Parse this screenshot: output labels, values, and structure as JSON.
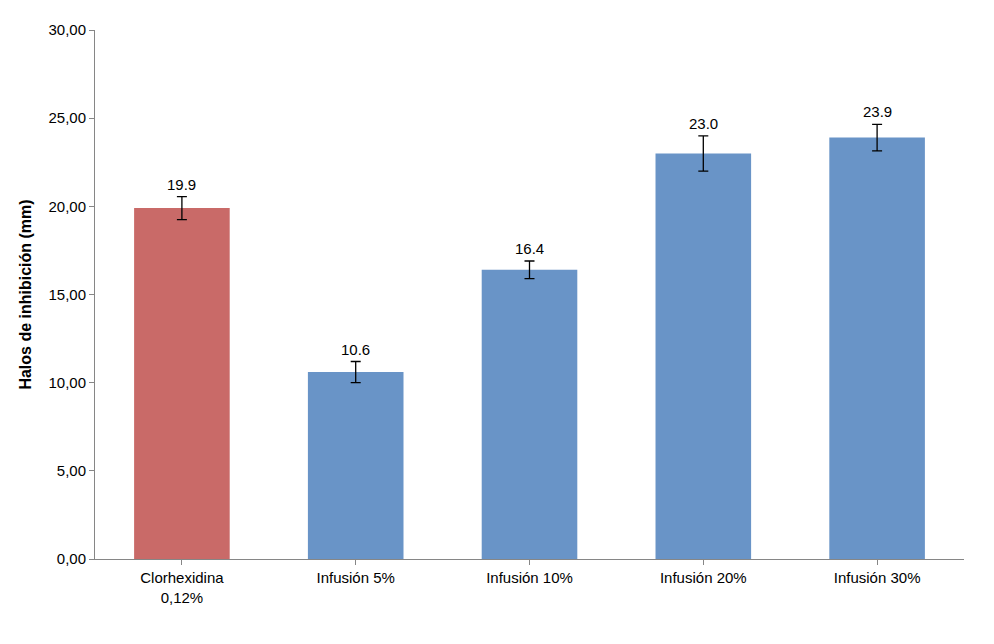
{
  "chart_data": {
    "type": "bar",
    "y_label": "Halos de inhibición (mm)",
    "categories": [
      "Clorhexidina 0,12%",
      "Infusión 5%",
      "Infusión 10%",
      "Infusión 20%",
      "Infusión 30%"
    ],
    "values": [
      19.9,
      10.6,
      16.4,
      23.0,
      23.9
    ],
    "value_labels": [
      "19.9",
      "10.6",
      "16.4",
      "23.0",
      "23.9"
    ],
    "errors": [
      0.65,
      0.6,
      0.5,
      1.0,
      0.75
    ],
    "colors": [
      "#c0504d",
      "#4f81bd",
      "#4f81bd",
      "#4f81bd",
      "#4f81bd"
    ],
    "ylim": [
      0,
      30
    ],
    "yticks": [
      {
        "value": 0,
        "label": "0,00"
      },
      {
        "value": 5,
        "label": "5,00"
      },
      {
        "value": 10,
        "label": "10,00"
      },
      {
        "value": 15,
        "label": "15,00"
      },
      {
        "value": 20,
        "label": "20,00"
      },
      {
        "value": 25,
        "label": "25,00"
      },
      {
        "value": 30,
        "label": "30,00"
      }
    ],
    "grid": false,
    "data_labels": true
  }
}
